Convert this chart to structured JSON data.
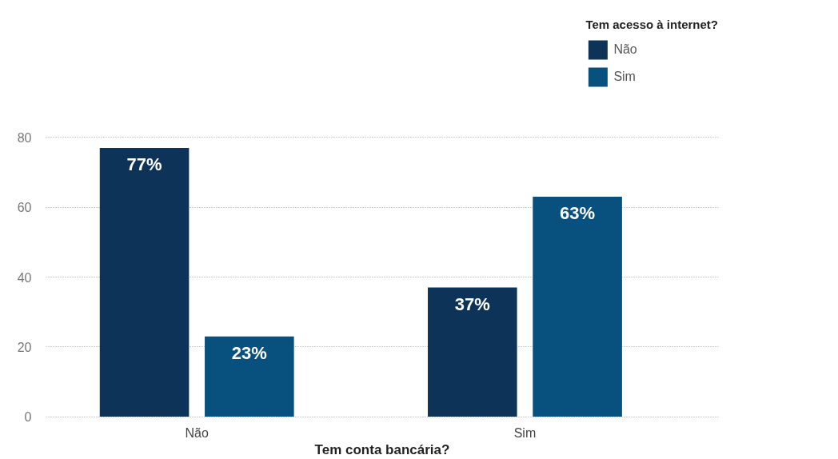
{
  "chart_data": {
    "type": "bar",
    "xlabel": "Tem conta bancária?",
    "legend_title": "Tem acesso à internet?",
    "categories": [
      "Não",
      "Sim"
    ],
    "series": [
      {
        "name": "Não",
        "color": "#0d3458",
        "values": [
          77,
          37
        ],
        "value_labels": [
          "77%",
          "37%"
        ]
      },
      {
        "name": "Sim",
        "color": "#08507e",
        "values": [
          23,
          63
        ],
        "value_labels": [
          "23%",
          "63%"
        ]
      }
    ],
    "ylim": [
      0,
      80
    ],
    "yticks": [
      0,
      20,
      40,
      60,
      80
    ],
    "grid": "y",
    "legend": "top right"
  }
}
